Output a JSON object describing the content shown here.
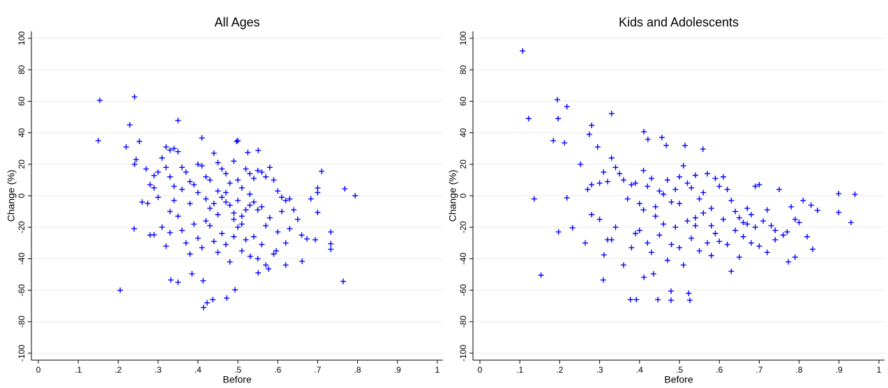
{
  "chart_data": [
    {
      "type": "scatter",
      "title": "All Ages",
      "xlabel": "Before",
      "ylabel": "Change (%)",
      "color": "#0000ff",
      "grid": true,
      "xlim": [
        0,
        1
      ],
      "ylim": [
        -100,
        100
      ],
      "xticks": [
        0,
        {
          "value": 0.1,
          "label": ".1"
        },
        {
          "value": 0.2,
          "label": ".2"
        },
        {
          "value": 0.3,
          "label": ".3"
        },
        {
          "value": 0.4,
          "label": ".4"
        },
        {
          "value": 0.5,
          "label": ".5"
        },
        {
          "value": 0.6,
          "label": ".6"
        },
        {
          "value": 0.7,
          "label": ".7"
        },
        {
          "value": 0.8,
          "label": ".8"
        },
        {
          "value": 0.9,
          "label": ".9"
        },
        1
      ],
      "yticks": [
        -100,
        -80,
        -60,
        -40,
        -20,
        0,
        20,
        40,
        60,
        80,
        100
      ],
      "x": [
        0.15,
        0.154,
        0.241,
        0.229,
        0.22,
        0.253,
        0.245,
        0.241,
        0.24,
        0.205,
        0.35,
        0.41,
        0.497,
        0.5,
        0.525,
        0.551,
        0.493,
        0.414,
        0.423,
        0.437,
        0.472,
        0.332,
        0.35,
        0.413,
        0.385,
        0.661,
        0.764,
        0.794,
        0.768,
        0.71,
        0.7,
        0.7,
        0.683,
        0.694,
        0.733,
        0.733,
        0.733,
        0.7,
        0.673,
        0.577,
        0.62,
        0.551,
        0.531,
        0.596,
        0.33,
        0.28,
        0.29,
        0.274,
        0.3,
        0.29,
        0.31,
        0.32,
        0.33,
        0.34,
        0.35,
        0.32,
        0.33,
        0.36,
        0.37,
        0.38,
        0.39,
        0.4,
        0.41,
        0.42,
        0.43,
        0.44,
        0.45,
        0.46,
        0.47,
        0.48,
        0.49,
        0.5,
        0.51,
        0.52,
        0.53,
        0.54,
        0.55,
        0.56,
        0.57,
        0.58,
        0.59,
        0.6,
        0.61,
        0.62,
        0.63,
        0.64,
        0.3,
        0.31,
        0.32,
        0.33,
        0.34,
        0.35,
        0.36,
        0.37,
        0.38,
        0.39,
        0.4,
        0.41,
        0.42,
        0.43,
        0.44,
        0.45,
        0.46,
        0.47,
        0.48,
        0.49,
        0.5,
        0.51,
        0.52,
        0.53,
        0.54,
        0.55,
        0.56,
        0.57,
        0.58,
        0.59,
        0.6,
        0.61,
        0.62,
        0.63,
        0.65,
        0.66,
        0.42,
        0.44,
        0.46,
        0.48,
        0.5,
        0.52,
        0.54,
        0.56,
        0.45,
        0.47,
        0.49,
        0.51,
        0.53,
        0.43,
        0.45,
        0.47,
        0.49,
        0.51,
        0.55,
        0.57,
        0.4,
        0.38,
        0.36,
        0.34,
        0.28,
        0.27,
        0.29,
        0.26
      ],
      "values": [
        35,
        60.6,
        62.8,
        45,
        31,
        34.5,
        23,
        20,
        -21,
        -60,
        47.8,
        36.7,
        34.5,
        35,
        27.5,
        28.8,
        -59.7,
        -71,
        -68,
        -66,
        -65,
        -53.5,
        -55,
        -54,
        -49.6,
        -41.6,
        -54.4,
        0,
        4.4,
        15.5,
        4.9,
        2,
        -2,
        -28,
        -30.5,
        -23,
        -34,
        -10.6,
        -27.4,
        -46.5,
        -44,
        -49,
        -38.5,
        -35,
        -23.5,
        -25,
        -24.8,
        -4.9,
        15,
        12.8,
        24,
        31,
        29,
        30,
        28,
        18,
        12,
        18,
        15,
        9,
        7,
        20,
        19,
        12,
        10,
        27,
        21,
        17,
        14,
        8,
        22,
        10,
        5,
        17,
        14,
        11,
        16,
        15,
        12,
        18,
        10,
        3,
        -1,
        -3,
        -2,
        -9,
        -1,
        -20,
        -32,
        -10,
        -3,
        -13,
        -22,
        -30,
        -37,
        -18,
        -27,
        -33,
        -16,
        -8,
        -29,
        -12,
        -24,
        -4,
        -42,
        -15,
        -20,
        -35,
        -28,
        -6,
        -26,
        -9,
        -31,
        -19,
        -14,
        -37,
        -23,
        -10,
        -30,
        -21,
        -15,
        -25,
        -2,
        -5,
        -1,
        -6,
        -3,
        -9,
        -4,
        -7,
        3,
        2,
        -11,
        -13,
        1,
        -19,
        -36,
        -31,
        -26,
        -18,
        -40,
        -44,
        2,
        -5,
        4,
        6,
        7,
        17,
        5,
        -4
      ]
    },
    {
      "type": "scatter",
      "title": "Kids and Adolescents",
      "xlabel": "Before",
      "ylabel": "Change (%)",
      "color": "#0000ff",
      "grid": true,
      "xlim": [
        0,
        1
      ],
      "ylim": [
        -100,
        100
      ],
      "xticks": [
        0,
        {
          "value": 0.1,
          "label": ".1"
        },
        {
          "value": 0.2,
          "label": ".2"
        },
        {
          "value": 0.3,
          "label": ".3"
        },
        {
          "value": 0.4,
          "label": ".4"
        },
        {
          "value": 0.5,
          "label": ".5"
        },
        {
          "value": 0.6,
          "label": ".6"
        },
        {
          "value": 0.7,
          "label": ".7"
        },
        {
          "value": 0.8,
          "label": ".8"
        },
        {
          "value": 0.9,
          "label": ".9"
        },
        1
      ],
      "yticks": [
        -100,
        -80,
        -60,
        -40,
        -20,
        0,
        20,
        40,
        60,
        80,
        100
      ],
      "x": [
        0.107,
        0.122,
        0.136,
        0.153,
        0.194,
        0.196,
        0.218,
        0.212,
        0.184,
        0.197,
        0.218,
        0.232,
        0.252,
        0.264,
        0.28,
        0.274,
        0.295,
        0.311,
        0.309,
        0.33,
        0.33,
        0.392,
        0.377,
        0.446,
        0.479,
        0.479,
        0.435,
        0.411,
        0.411,
        0.421,
        0.456,
        0.467,
        0.514,
        0.559,
        0.94,
        0.93,
        0.899,
        0.899,
        0.846,
        0.834,
        0.79,
        0.773,
        0.526,
        0.523,
        0.28,
        0.27,
        0.3,
        0.31,
        0.32,
        0.33,
        0.34,
        0.35,
        0.36,
        0.37,
        0.38,
        0.39,
        0.4,
        0.41,
        0.42,
        0.43,
        0.44,
        0.45,
        0.46,
        0.47,
        0.48,
        0.49,
        0.5,
        0.51,
        0.52,
        0.53,
        0.54,
        0.55,
        0.56,
        0.57,
        0.58,
        0.59,
        0.6,
        0.61,
        0.62,
        0.63,
        0.64,
        0.65,
        0.66,
        0.67,
        0.68,
        0.69,
        0.7,
        0.71,
        0.72,
        0.73,
        0.74,
        0.75,
        0.76,
        0.77,
        0.78,
        0.79,
        0.8,
        0.81,
        0.82,
        0.83,
        0.28,
        0.3,
        0.32,
        0.34,
        0.36,
        0.38,
        0.39,
        0.4,
        0.41,
        0.42,
        0.43,
        0.44,
        0.45,
        0.46,
        0.47,
        0.48,
        0.49,
        0.5,
        0.51,
        0.52,
        0.53,
        0.54,
        0.55,
        0.56,
        0.57,
        0.58,
        0.59,
        0.6,
        0.61,
        0.62,
        0.63,
        0.64,
        0.65,
        0.66,
        0.67,
        0.68,
        0.69,
        0.7,
        0.72,
        0.74,
        0.5,
        0.54,
        0.58
      ],
      "values": [
        92,
        49,
        -2,
        -50.5,
        61,
        49,
        56.6,
        33.6,
        35,
        -23,
        -1.3,
        -20.4,
        20,
        -30,
        44.7,
        39,
        31,
        -37.6,
        -53.5,
        52.2,
        -28,
        -66,
        -66,
        -66,
        -66.4,
        -60.6,
        -49.6,
        -51.8,
        40.7,
        35.8,
        37,
        32,
        31.9,
        29.6,
        0.9,
        -17,
        1.3,
        -10.6,
        -9.3,
        -34,
        -39,
        -42,
        -66.4,
        -62,
        7,
        4,
        8,
        15,
        9,
        24,
        18,
        14,
        10,
        -2,
        7,
        8,
        -5,
        16,
        6,
        11,
        -7,
        3,
        1,
        10,
        -4,
        4,
        12,
        19,
        8,
        5,
        13,
        -2,
        2,
        14,
        -8,
        11,
        6,
        12,
        4,
        -3,
        -10,
        -14,
        -17,
        -8,
        -12,
        6,
        7,
        -16,
        -9,
        -19,
        -22,
        4,
        -25,
        -23,
        -7,
        -15,
        -17,
        -3,
        -26,
        -6,
        -12,
        -15,
        -28,
        -20,
        -44,
        -33,
        -24,
        -22,
        -9,
        -30,
        -36,
        -13,
        -25,
        -18,
        -41,
        -31,
        -20,
        -33,
        -44,
        -16,
        -27,
        -19,
        -35,
        -11,
        -30,
        -38,
        -24,
        -29,
        -15,
        -31,
        -48,
        -22,
        -39,
        -26,
        -18,
        -30,
        -20,
        -32,
        -36,
        -28,
        -5,
        -14,
        -19
      ]
    }
  ]
}
